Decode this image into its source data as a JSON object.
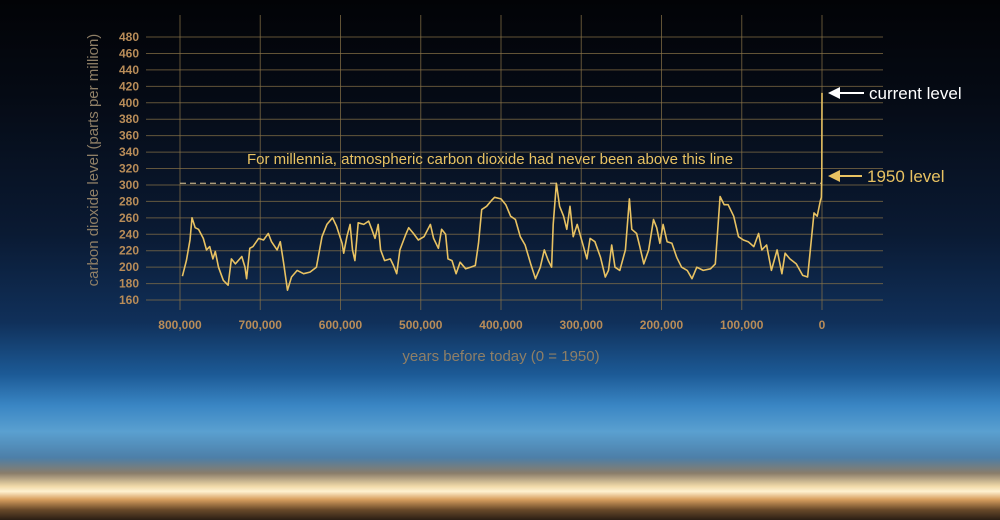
{
  "chart_data": {
    "type": "line",
    "title": "",
    "xlabel": "years before today (0 = 1950)",
    "ylabel": "carbon dioxide level (parts per million)",
    "xlim": [
      800000,
      0
    ],
    "ylim": [
      160,
      480
    ],
    "x_reversed": true,
    "grid": true,
    "x_ticks": [
      800000,
      700000,
      600000,
      500000,
      400000,
      300000,
      200000,
      100000,
      0
    ],
    "x_tick_labels": [
      "800,000",
      "700,000",
      "600,000",
      "500,000",
      "400,000",
      "300,000",
      "200,000",
      "100,000",
      "0"
    ],
    "y_ticks": [
      160,
      180,
      200,
      220,
      240,
      260,
      280,
      300,
      320,
      340,
      360,
      380,
      400,
      420,
      440,
      460,
      480
    ],
    "line_color": "#e8c262",
    "reference_line": {
      "y": 302,
      "style": "dashed",
      "label": "For millennia, atmospheric carbon dioxide had never been above this line"
    },
    "annotations": [
      {
        "label": "current level",
        "x": 0,
        "y": 412,
        "color": "#ffffff"
      },
      {
        "label": "1950 level",
        "x": 0,
        "y": 310,
        "color": "#e8c262"
      }
    ],
    "series": [
      {
        "x": [
          797000,
          792000,
          787500,
          785000,
          781000,
          777000,
          771000,
          767000,
          763000,
          759000,
          756000,
          752000,
          746000,
          740000,
          736000,
          731000,
          723000,
          719000,
          717000,
          713000,
          709000,
          702000,
          696000,
          690000,
          686000,
          679000,
          675000,
          671000,
          666000,
          661000,
          654000,
          646000,
          638000,
          630000,
          623000,
          617000,
          610000,
          605000,
          598000,
          596000,
          592000,
          588000,
          585000,
          582000,
          578000,
          571000,
          565000,
          561000,
          557000,
          553000,
          550000,
          545000,
          538000,
          534000,
          530000,
          526000,
          519000,
          515000,
          509000,
          503000,
          496000,
          488000,
          484000,
          478000,
          474000,
          469000,
          466000,
          461000,
          456000,
          451000,
          444000,
          438000,
          432000,
          428000,
          424000,
          418000,
          412000,
          408000,
          400000,
          394000,
          388000,
          382000,
          376000,
          370000,
          363000,
          357000,
          351000,
          346000,
          341000,
          337000,
          335000,
          331000,
          327000,
          322000,
          318000,
          314000,
          310000,
          305000,
          299000,
          293000,
          289000,
          283000,
          276000,
          270000,
          266000,
          262000,
          258000,
          252000,
          245000,
          240000,
          237000,
          231000,
          227000,
          222000,
          216000,
          210000,
          206000,
          202000,
          198000,
          193000,
          187000,
          181000,
          175000,
          168000,
          162000,
          156000,
          148000,
          139000,
          133000,
          127000,
          122000,
          117000,
          110000,
          104000,
          98000,
          92000,
          85000,
          79000,
          75000,
          69000,
          63000,
          56000,
          50000,
          46000,
          40000,
          32000,
          24000,
          18000,
          15000,
          10000,
          6000,
          2000,
          800,
          300,
          0
        ],
        "y": [
          189,
          208,
          233,
          260,
          248,
          246,
          235,
          221,
          225,
          210,
          219,
          200,
          184,
          178,
          210,
          204,
          213,
          200,
          186,
          223,
          225,
          235,
          233,
          241,
          231,
          221,
          231,
          206,
          172,
          188,
          196,
          192,
          194,
          200,
          237,
          252,
          260,
          250,
          229,
          217,
          237,
          252,
          221,
          208,
          254,
          252,
          256,
          246,
          235,
          252,
          221,
          208,
          210,
          202,
          192,
          221,
          239,
          248,
          241,
          233,
          237,
          252,
          235,
          223,
          246,
          240,
          210,
          208,
          192,
          206,
          198,
          200,
          202,
          229,
          270,
          274,
          281,
          285,
          283,
          276,
          262,
          258,
          237,
          227,
          204,
          186,
          200,
          221,
          208,
          200,
          252,
          302,
          274,
          262,
          246,
          274,
          237,
          252,
          231,
          210,
          235,
          231,
          212,
          188,
          196,
          227,
          200,
          196,
          221,
          283,
          246,
          241,
          225,
          204,
          221,
          258,
          248,
          229,
          252,
          231,
          229,
          212,
          200,
          196,
          186,
          200,
          196,
          198,
          204,
          286,
          276,
          276,
          262,
          237,
          233,
          231,
          225,
          241,
          221,
          227,
          196,
          221,
          192,
          217,
          210,
          204,
          190,
          188,
          217,
          266,
          262,
          281,
          285,
          310,
          412
        ]
      }
    ]
  }
}
